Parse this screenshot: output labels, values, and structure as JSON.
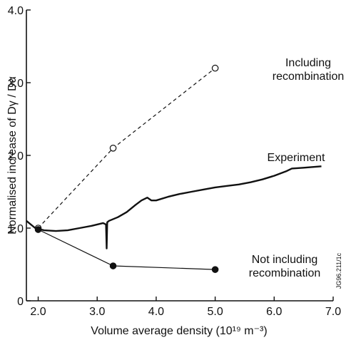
{
  "chart_data": {
    "type": "line",
    "xlabel": "Volume average density (10¹⁹ m⁻³)",
    "ylabel": "Normalised increase of Dγ / Dα",
    "xlim": [
      1.8,
      7.0
    ],
    "ylim": [
      0,
      4.0
    ],
    "xticks": [
      2.0,
      3.0,
      4.0,
      5.0,
      6.0,
      7.0
    ],
    "xtick_labels": [
      "2.0",
      "3.0",
      "4.0",
      "5.0",
      "6.0",
      "7.0"
    ],
    "yticks": [
      0,
      1.0,
      2.0,
      3.0,
      4.0
    ],
    "ytick_labels": [
      "0",
      "1.0",
      "2.0",
      "3.0",
      "4.0"
    ],
    "grid": false,
    "figure_code": "JG96.211/1c",
    "series": [
      {
        "name": "Including recombination",
        "style": "dashed",
        "marker": "open-circle",
        "x": [
          2.0,
          3.27,
          5.0
        ],
        "y": [
          1.0,
          2.1,
          3.2
        ]
      },
      {
        "name": "Not including recombination",
        "style": "solid",
        "marker": "filled-circle",
        "x": [
          2.0,
          3.27,
          5.0
        ],
        "y": [
          0.98,
          0.48,
          0.43
        ]
      },
      {
        "name": "Experiment",
        "style": "noisy-trace",
        "marker": "none",
        "x": [
          1.8,
          1.95,
          2.1,
          2.3,
          2.5,
          2.7,
          2.9,
          3.1,
          3.15,
          3.16,
          3.17,
          3.2,
          3.35,
          3.5,
          3.65,
          3.75,
          3.85,
          3.92,
          4.0,
          4.2,
          4.4,
          4.6,
          4.8,
          5.0,
          5.2,
          5.4,
          5.6,
          5.8,
          6.0,
          6.2,
          6.3,
          6.5,
          6.8
        ],
        "y": [
          1.1,
          1.0,
          0.97,
          0.96,
          0.97,
          1.0,
          1.03,
          1.07,
          1.05,
          0.72,
          1.08,
          1.1,
          1.15,
          1.22,
          1.32,
          1.38,
          1.42,
          1.38,
          1.38,
          1.43,
          1.47,
          1.5,
          1.53,
          1.56,
          1.58,
          1.6,
          1.63,
          1.67,
          1.72,
          1.78,
          1.82,
          1.83,
          1.85
        ]
      }
    ],
    "annotations": [
      {
        "line1": "Including",
        "line2": "recombination"
      },
      {
        "line1": "Experiment",
        "line2": ""
      },
      {
        "line1": "Not including",
        "line2": "recombination"
      }
    ]
  }
}
